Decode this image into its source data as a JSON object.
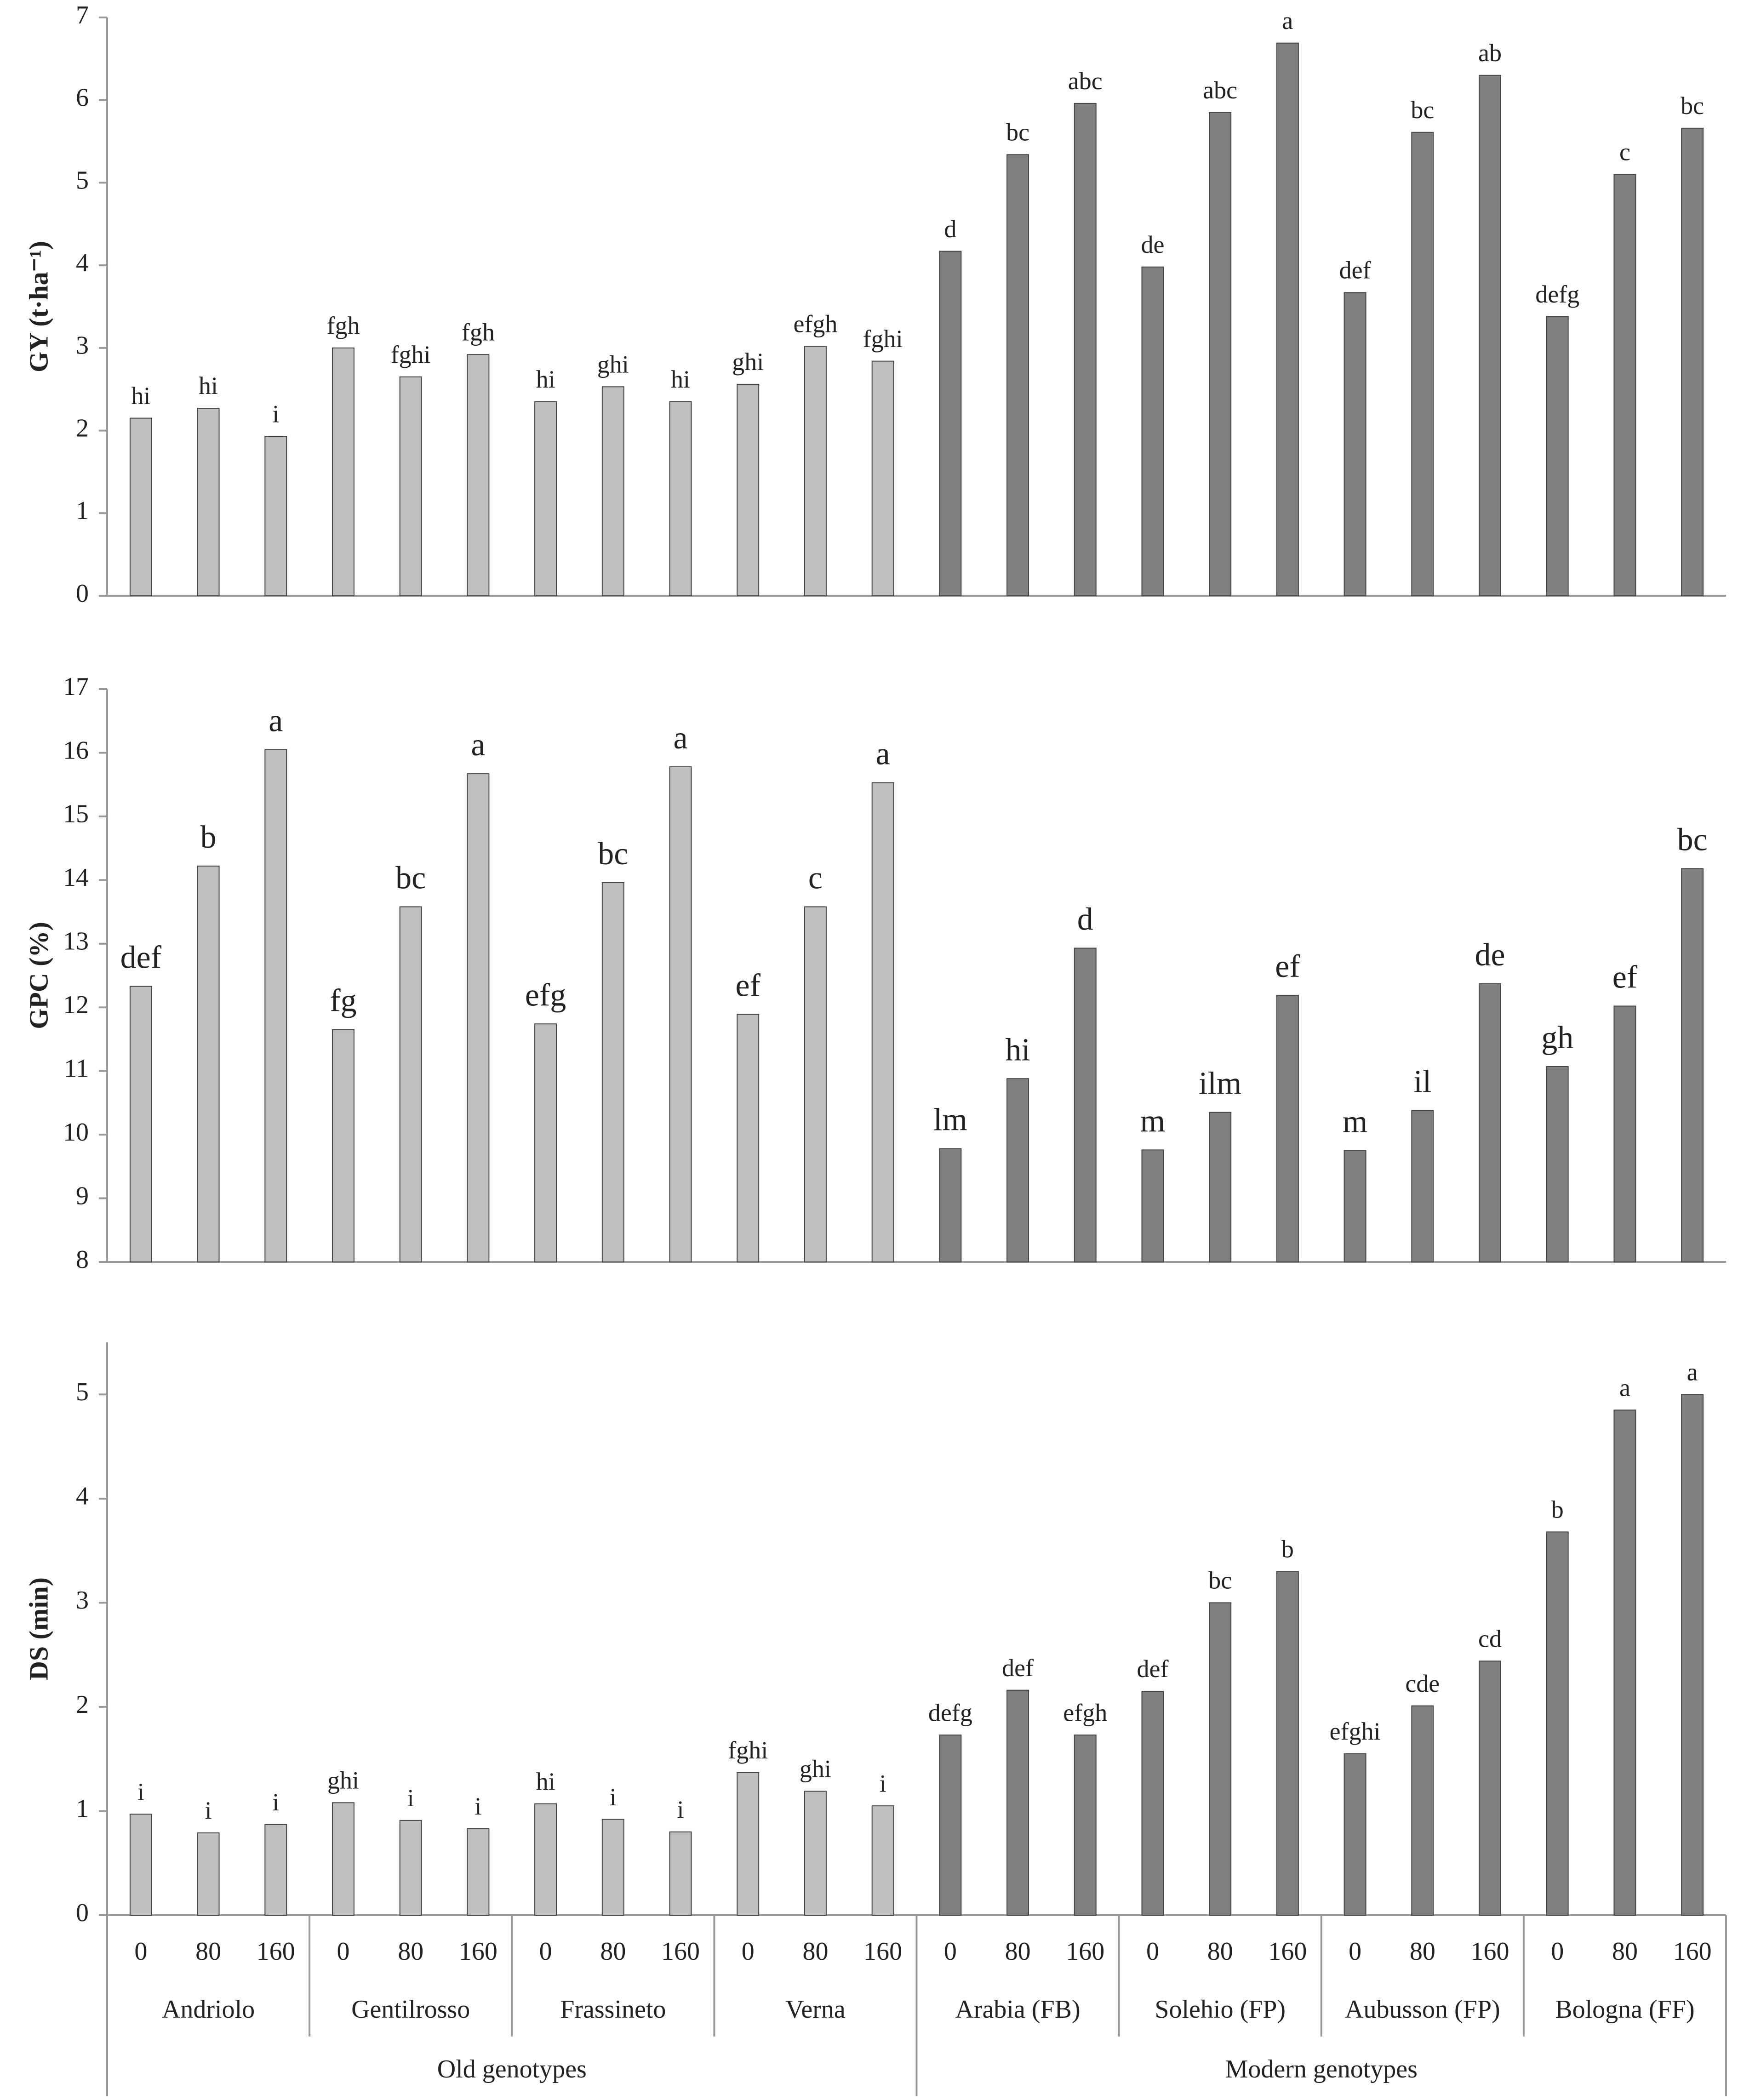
{
  "chart_data": [
    {
      "type": "bar",
      "y_label": "GY (t·ha⁻¹)",
      "ylim": [
        0,
        7
      ],
      "yticks": [
        0,
        1,
        2,
        3,
        4,
        5,
        6,
        7
      ],
      "values": [
        2.15,
        2.27,
        1.93,
        3.0,
        2.65,
        2.92,
        2.35,
        2.53,
        2.35,
        2.56,
        3.02,
        2.84,
        4.17,
        5.34,
        5.96,
        3.98,
        5.85,
        6.69,
        3.67,
        5.61,
        6.3,
        3.38,
        5.1,
        5.66
      ],
      "value_labels": [
        "hi",
        "hi",
        "i",
        "fgh",
        "fghi",
        "fgh",
        "hi",
        "ghi",
        "hi",
        "ghi",
        "efgh",
        "fghi",
        "d",
        "bc",
        "abc",
        "de",
        "abc",
        "a",
        "def",
        "bc",
        "ab",
        "defg",
        "c",
        "bc"
      ]
    },
    {
      "type": "bar",
      "y_label": "GPC (%)",
      "ylim": [
        8,
        17
      ],
      "yticks": [
        8,
        9,
        10,
        11,
        12,
        13,
        14,
        15,
        16,
        17
      ],
      "values": [
        12.33,
        14.22,
        16.05,
        11.65,
        13.58,
        15.67,
        11.74,
        13.96,
        15.78,
        11.89,
        13.58,
        15.53,
        9.78,
        10.88,
        12.93,
        9.76,
        10.35,
        12.19,
        9.75,
        10.38,
        12.37,
        11.07,
        12.02,
        14.18
      ],
      "value_labels": [
        "def",
        "b",
        "a",
        "fg",
        "bc",
        "a",
        "efg",
        "bc",
        "a",
        "ef",
        "c",
        "a",
        "lm",
        "hi",
        "d",
        "m",
        "ilm",
        "ef",
        "m",
        "il",
        "de",
        "gh",
        "ef",
        "bc"
      ]
    },
    {
      "type": "bar",
      "y_label": "DS (min)",
      "ylim": [
        0,
        5.5
      ],
      "yticks": [
        0,
        1,
        2,
        3,
        4,
        5
      ],
      "values": [
        0.97,
        0.79,
        0.87,
        1.08,
        0.91,
        0.83,
        1.07,
        0.92,
        0.8,
        1.37,
        1.19,
        1.05,
        1.73,
        2.16,
        1.73,
        2.15,
        3.0,
        3.3,
        1.55,
        2.01,
        2.44,
        3.68,
        4.85,
        5.0
      ],
      "value_labels": [
        "i",
        "i",
        "i",
        "ghi",
        "i",
        "i",
        "hi",
        "i",
        "i",
        "fghi",
        "ghi",
        "i",
        "defg",
        "def",
        "efgh",
        "def",
        "bc",
        "b",
        "efghi",
        "cde",
        "cd",
        "b",
        "a",
        "a"
      ]
    }
  ],
  "x_axis": {
    "categories": [
      "0",
      "80",
      "160",
      "0",
      "80",
      "160",
      "0",
      "80",
      "160",
      "0",
      "80",
      "160",
      "0",
      "80",
      "160",
      "0",
      "80",
      "160",
      "0",
      "80",
      "160",
      "0",
      "80",
      "160"
    ],
    "groups": [
      {
        "name": "Old genotypes",
        "color": "#bfbfbf",
        "genotypes": [
          "Andriolo",
          "Gentilrosso",
          "Frassineto",
          "Verna"
        ]
      },
      {
        "name": "Modern genotypes",
        "color": "#7f7f7f",
        "genotypes": [
          "Arabia (FB)",
          "Solehio (FP)",
          "Aubusson (FP)",
          "Bologna (FF)"
        ]
      }
    ]
  }
}
